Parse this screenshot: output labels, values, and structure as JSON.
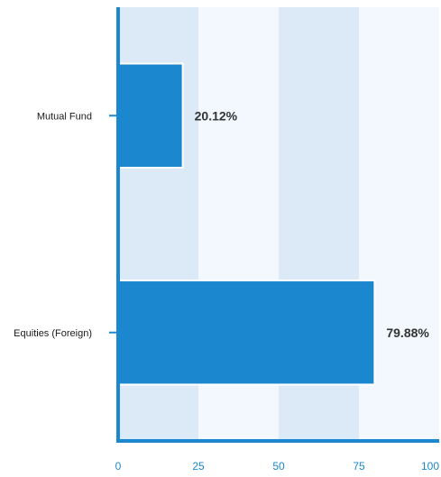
{
  "chart_data": {
    "type": "bar",
    "orientation": "horizontal",
    "categories": [
      "Mutual Fund",
      "Equities (Foreign)"
    ],
    "values": [
      20.12,
      79.88
    ],
    "data_labels": [
      "20.12%",
      "79.88%"
    ],
    "xlim": [
      0,
      100
    ],
    "x_ticks": [
      0,
      25,
      50,
      75,
      100
    ],
    "x_tick_labels": [
      "0",
      "25",
      "50",
      "75",
      "100"
    ],
    "title": "",
    "xlabel": "",
    "ylabel": "",
    "grid": "alternating vertical bands",
    "legend": "none"
  },
  "colors": {
    "bar": "#1a87cf",
    "axis": "#1a87cf",
    "tick_text": "#1a87cf",
    "band_dark": "#dbeaf6",
    "band_light": "#f2f8fd"
  }
}
